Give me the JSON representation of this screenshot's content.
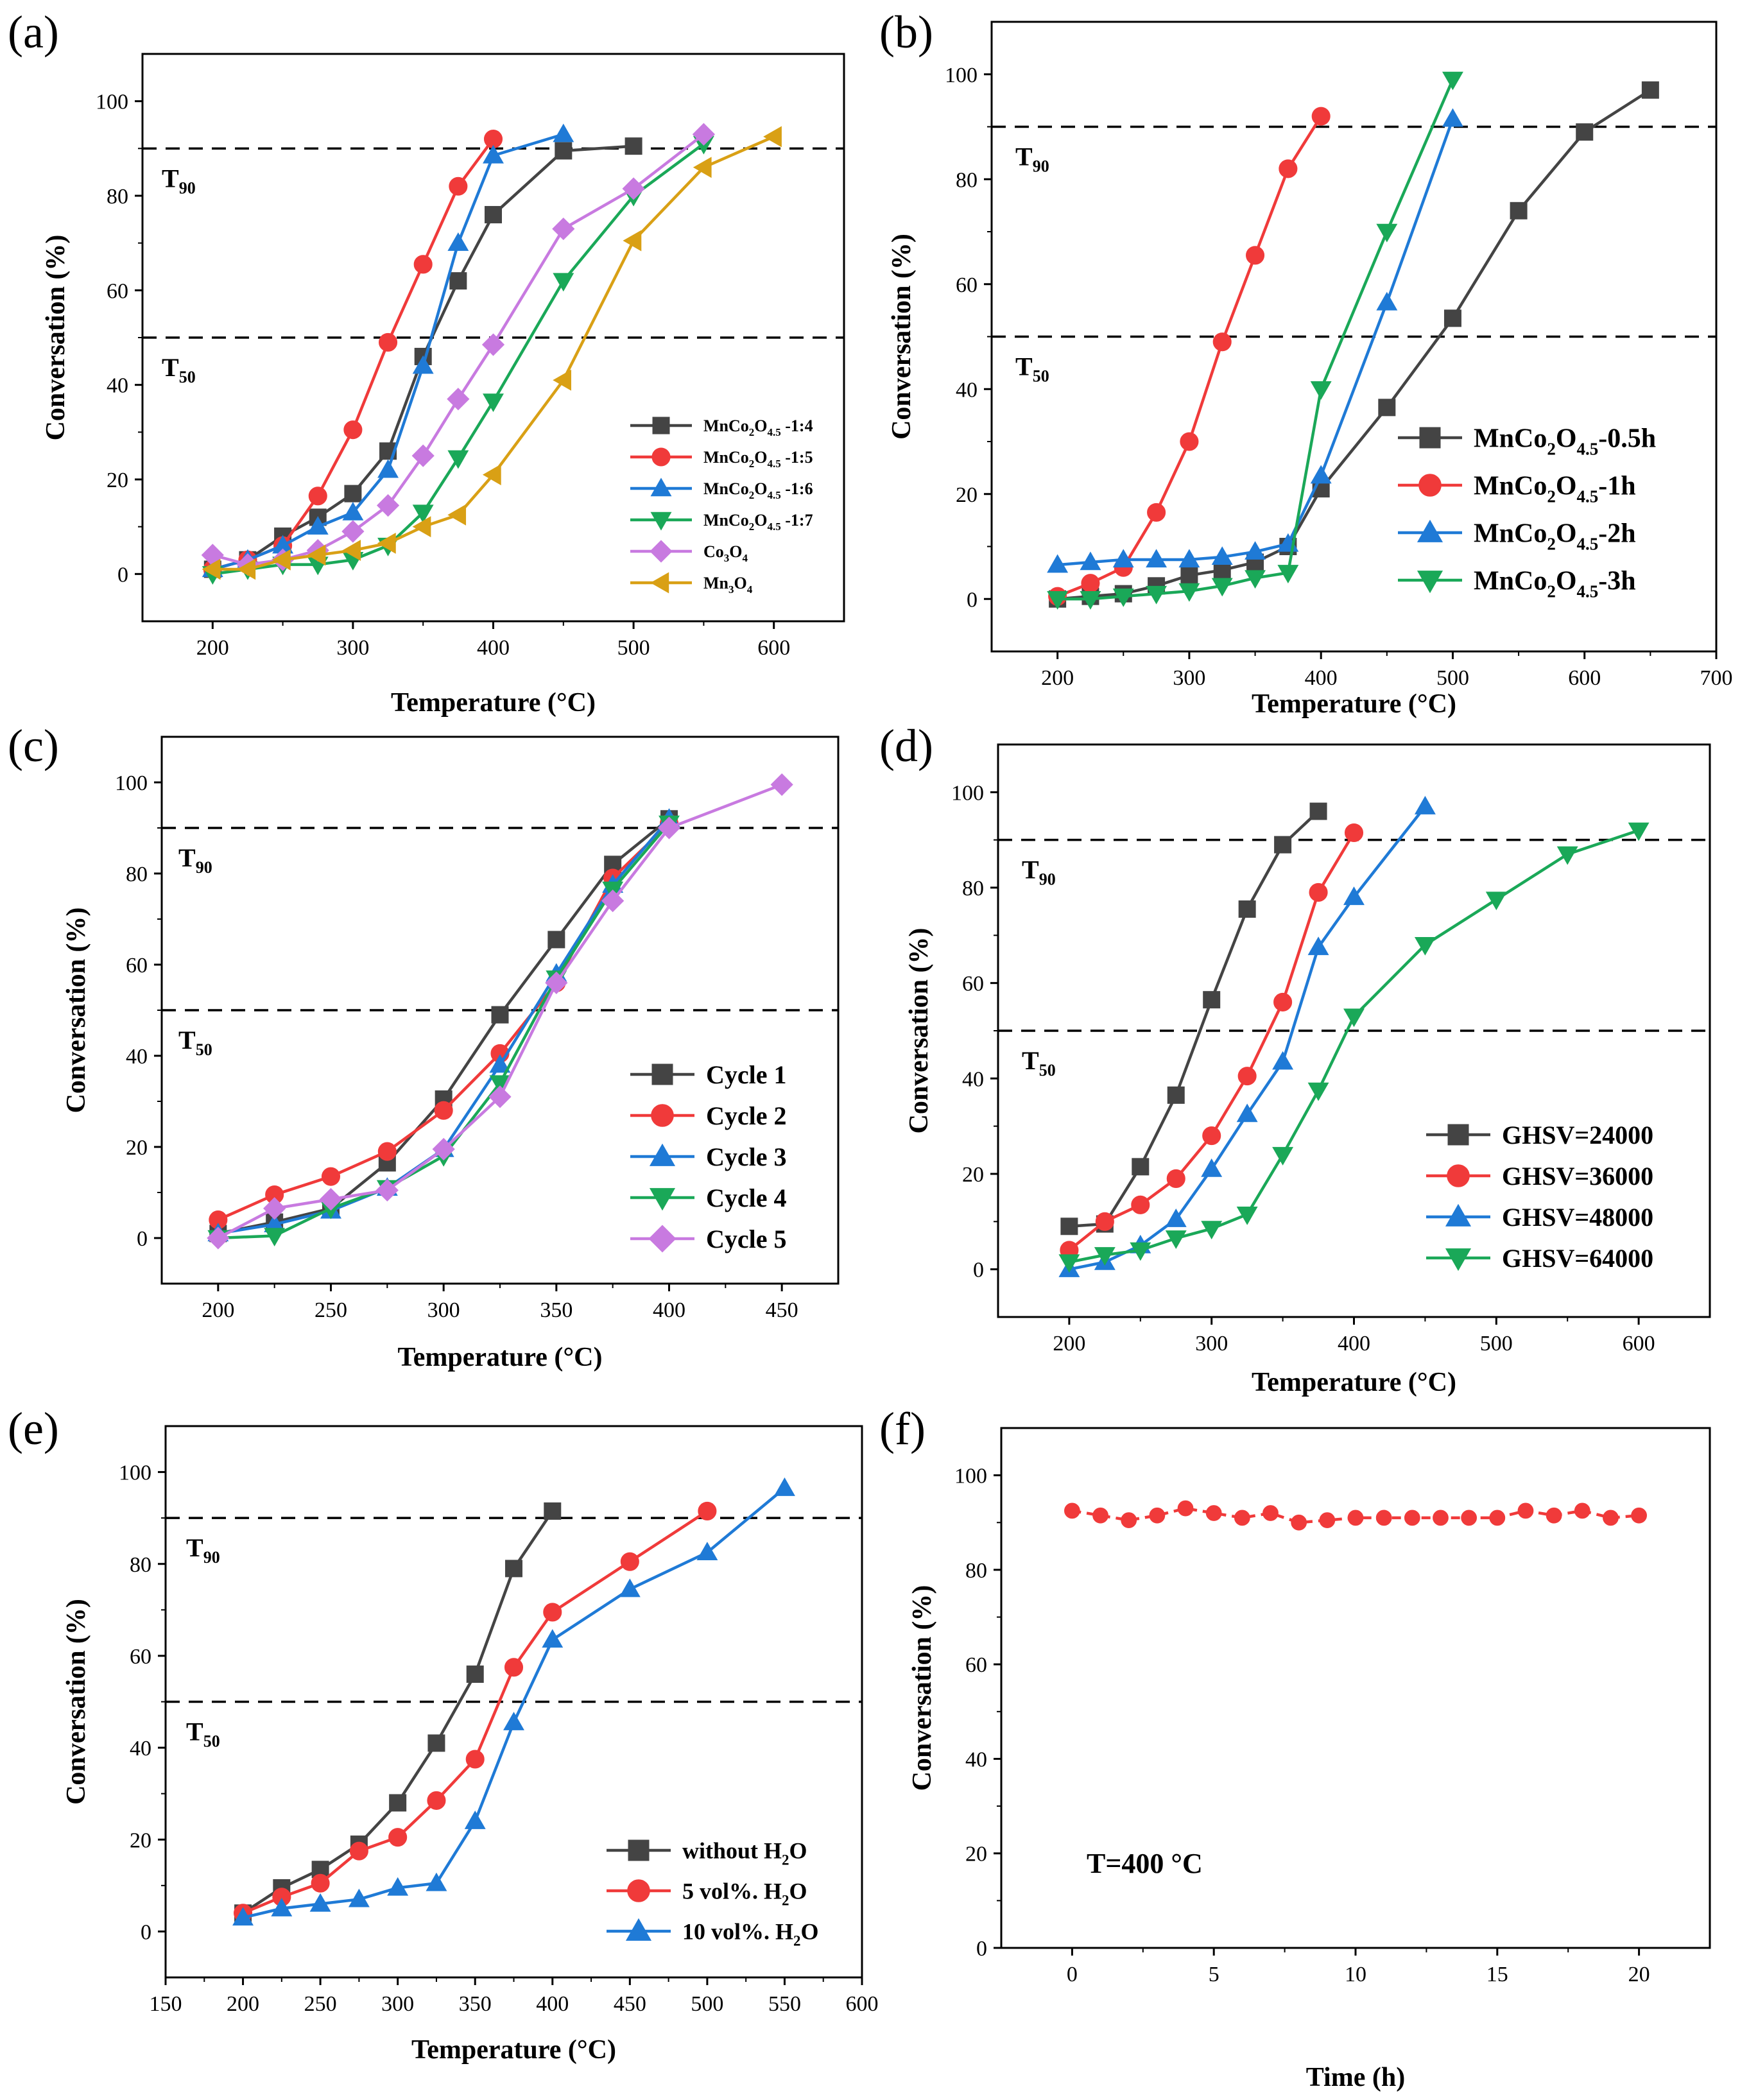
{
  "chart_data": [
    {
      "type": "line",
      "panel_label": "(a)",
      "xlabel": "Temperature (°C)",
      "ylabel": "Conversation (%)",
      "xlim": [
        150,
        650
      ],
      "ylim": [
        -10,
        110
      ],
      "xticks": [
        200,
        300,
        400,
        500,
        600
      ],
      "yticks": [
        0,
        20,
        40,
        60,
        80,
        100
      ],
      "reference_lines": [
        {
          "y": 90,
          "label": "T",
          "sub": "90"
        },
        {
          "y": 50,
          "label": "T",
          "sub": "50"
        }
      ],
      "legend_position": "bottom-right",
      "series": [
        {
          "name": "MnCo₂O₄.₅-1:4",
          "label_main": "MnCo",
          "label_sub1": "2",
          "label_mid": "O",
          "label_sub2": "4.5",
          "label_tail": " -1:4",
          "color": "#444444",
          "marker": "square",
          "x": [
            200,
            225,
            250,
            275,
            300,
            325,
            350,
            375,
            400,
            450,
            500
          ],
          "y": [
            1,
            3,
            8,
            12,
            17,
            26,
            46,
            62,
            76,
            89.5,
            90.5
          ]
        },
        {
          "name": "MnCo₂O₄.₅-1:5",
          "label_main": "MnCo",
          "label_sub1": "2",
          "label_mid": "O",
          "label_sub2": "4.5",
          "label_tail": " -1:5",
          "color": "#f03a3a",
          "marker": "circle",
          "x": [
            200,
            225,
            250,
            275,
            300,
            325,
            350,
            375,
            400
          ],
          "y": [
            1,
            3,
            6,
            16.5,
            30.5,
            49,
            65.5,
            82,
            92
          ]
        },
        {
          "name": "MnCo₂O₄.₅-1:6",
          "label_main": "MnCo",
          "label_sub1": "2",
          "label_mid": "O",
          "label_sub2": "4.5",
          "label_tail": " -1:6",
          "color": "#1f7ad6",
          "marker": "triangle-up",
          "x": [
            200,
            225,
            250,
            275,
            300,
            325,
            350,
            375,
            400,
            450
          ],
          "y": [
            1,
            3,
            6,
            10,
            13,
            22,
            44,
            70,
            88.5,
            93
          ]
        },
        {
          "name": "MnCo₂O₄.₅-1:7",
          "label_main": "MnCo",
          "label_sub1": "2",
          "label_mid": "O",
          "label_sub2": "4.5",
          "label_tail": " -1:7",
          "color": "#1aa858",
          "marker": "triangle-down",
          "x": [
            200,
            225,
            250,
            275,
            300,
            325,
            350,
            375,
            400,
            450,
            500,
            550
          ],
          "y": [
            0,
            1,
            2,
            2,
            3,
            6,
            13,
            24.5,
            36.5,
            62,
            80,
            91
          ]
        },
        {
          "name": "Co₃O₄",
          "label_main": "Co",
          "label_sub1": "3",
          "label_mid": "O",
          "label_sub2": "4",
          "label_tail": "",
          "color": "#c87ae0",
          "marker": "diamond",
          "x": [
            200,
            225,
            250,
            275,
            300,
            325,
            350,
            375,
            400,
            450,
            500,
            550
          ],
          "y": [
            4,
            2,
            3,
            5,
            9,
            14.5,
            25,
            37,
            48.5,
            73,
            81.5,
            93
          ]
        },
        {
          "name": "Mn₃O₄",
          "label_main": "Mn",
          "label_sub1": "3",
          "label_mid": "O",
          "label_sub2": "4",
          "label_tail": "",
          "color": "#d9a015",
          "marker": "triangle-left",
          "x": [
            200,
            225,
            250,
            275,
            300,
            325,
            350,
            375,
            400,
            450,
            500,
            550,
            600
          ],
          "y": [
            1,
            1,
            3,
            4,
            5,
            6.5,
            10,
            12.5,
            21,
            41,
            70.5,
            86,
            92.5
          ]
        }
      ]
    },
    {
      "type": "line",
      "panel_label": "(b)",
      "xlabel": "Temperature (°C)",
      "ylabel": "Conversation (%)",
      "xlim": [
        150,
        700
      ],
      "ylim": [
        -10,
        110
      ],
      "xticks": [
        200,
        300,
        400,
        500,
        600,
        700
      ],
      "yticks": [
        0,
        20,
        40,
        60,
        80,
        100
      ],
      "reference_lines": [
        {
          "y": 90,
          "label": "T",
          "sub": "90"
        },
        {
          "y": 50,
          "label": "T",
          "sub": "50"
        }
      ],
      "legend_position": "bottom-right",
      "series": [
        {
          "name": "MnCo₂O₄.₅-0.5h",
          "label_main": "MnCo",
          "label_sub1": "2",
          "label_mid": "O",
          "label_sub2": "4.5",
          "label_tail": "-0.5h",
          "color": "#444444",
          "marker": "square",
          "x": [
            200,
            225,
            250,
            275,
            300,
            325,
            350,
            375,
            400,
            450,
            500,
            550,
            600,
            650
          ],
          "y": [
            0,
            0.5,
            1,
            2.5,
            4.5,
            5.5,
            7,
            10,
            21,
            36.5,
            53.5,
            74,
            89,
            97
          ]
        },
        {
          "name": "MnCo₂O₄.₅-1h",
          "label_main": "MnCo",
          "label_sub1": "2",
          "label_mid": "O",
          "label_sub2": "4.5",
          "label_tail": "-1h",
          "color": "#f03a3a",
          "marker": "circle",
          "x": [
            200,
            225,
            250,
            275,
            300,
            325,
            350,
            375,
            400
          ],
          "y": [
            0.5,
            3,
            6,
            16.5,
            30,
            49,
            65.5,
            82,
            92
          ]
        },
        {
          "name": "MnCo₂O₄.₅-2h",
          "label_main": "MnCo",
          "label_sub1": "2",
          "label_mid": "O",
          "label_sub2": "4.5",
          "label_tail": "-2h",
          "color": "#1f7ad6",
          "marker": "triangle-up",
          "x": [
            200,
            225,
            250,
            275,
            300,
            325,
            350,
            375,
            400,
            450,
            500
          ],
          "y": [
            6.5,
            7,
            7.5,
            7.5,
            7.5,
            8,
            9,
            10.5,
            23.5,
            56.5,
            91.5
          ]
        },
        {
          "name": "MnCo₂O₄.₅-3h",
          "label_main": "MnCo",
          "label_sub1": "2",
          "label_mid": "O",
          "label_sub2": "4.5",
          "label_tail": "-3h",
          "color": "#1aa858",
          "marker": "triangle-down",
          "x": [
            200,
            225,
            250,
            275,
            300,
            325,
            350,
            375,
            400,
            450,
            500
          ],
          "y": [
            0,
            0,
            0.5,
            1,
            1.5,
            2.5,
            4,
            5,
            40,
            70,
            99
          ]
        }
      ]
    },
    {
      "type": "line",
      "panel_label": "(c)",
      "xlabel": "Temperature (°C)",
      "ylabel": "Conversation (%)",
      "xlim": [
        175,
        475
      ],
      "ylim": [
        -10,
        110
      ],
      "xticks": [
        200,
        250,
        300,
        350,
        400,
        450
      ],
      "yticks": [
        0,
        20,
        40,
        60,
        80,
        100
      ],
      "reference_lines": [
        {
          "y": 90,
          "label": "T",
          "sub": "90"
        },
        {
          "y": 50,
          "label": "T",
          "sub": "50"
        }
      ],
      "legend_position": "bottom-right",
      "series": [
        {
          "name": "Cycle 1",
          "label_main": "Cycle 1",
          "color": "#444444",
          "marker": "square",
          "x": [
            200,
            225,
            250,
            275,
            300,
            325,
            350,
            375,
            400
          ],
          "y": [
            1,
            3.5,
            6.5,
            16.5,
            30.5,
            49,
            65.5,
            82,
            92
          ]
        },
        {
          "name": "Cycle 2",
          "label_main": "Cycle 2",
          "color": "#f03a3a",
          "marker": "circle",
          "x": [
            200,
            225,
            250,
            275,
            300,
            325,
            350,
            375,
            400
          ],
          "y": [
            4,
            9.5,
            13.5,
            19,
            28,
            40.5,
            56,
            79,
            91
          ]
        },
        {
          "name": "Cycle 3",
          "label_main": "Cycle 3",
          "color": "#1f7ad6",
          "marker": "triangle-up",
          "x": [
            200,
            225,
            250,
            275,
            300,
            325,
            350,
            375,
            400
          ],
          "y": [
            1,
            3,
            6,
            11,
            19.5,
            38,
            58,
            77.5,
            92
          ]
        },
        {
          "name": "Cycle 4",
          "label_main": "Cycle 4",
          "color": "#1aa858",
          "marker": "triangle-down",
          "x": [
            200,
            225,
            250,
            275,
            300,
            325,
            350,
            375,
            400
          ],
          "y": [
            0,
            0.5,
            6.5,
            11,
            18,
            34,
            57,
            76.5,
            91
          ]
        },
        {
          "name": "Cycle 5",
          "label_main": "Cycle 5",
          "color": "#c87ae0",
          "marker": "diamond",
          "x": [
            200,
            225,
            250,
            275,
            300,
            325,
            350,
            375,
            400,
            450
          ],
          "y": [
            0,
            6.5,
            8.5,
            10.5,
            19.5,
            31,
            56,
            74,
            90,
            99.5
          ]
        }
      ]
    },
    {
      "type": "line",
      "panel_label": "(d)",
      "xlabel": "Temperature (°C)",
      "ylabel": "Conversation (%)",
      "xlim": [
        150,
        650
      ],
      "ylim": [
        -10,
        110
      ],
      "xticks": [
        200,
        300,
        400,
        500,
        600
      ],
      "yticks": [
        0,
        20,
        40,
        60,
        80,
        100
      ],
      "reference_lines": [
        {
          "y": 90,
          "label": "T",
          "sub": "90"
        },
        {
          "y": 50,
          "label": "T",
          "sub": "50"
        }
      ],
      "legend_position": "bottom-right",
      "series": [
        {
          "name": "GHSV=24000",
          "label_main": "GHSV=24000",
          "color": "#444444",
          "marker": "square",
          "x": [
            200,
            225,
            250,
            275,
            300,
            325,
            350,
            375
          ],
          "y": [
            9,
            9.5,
            21.5,
            36.5,
            56.5,
            75.5,
            89,
            96
          ]
        },
        {
          "name": "GHSV=36000",
          "label_main": "GHSV=36000",
          "color": "#f03a3a",
          "marker": "circle",
          "x": [
            200,
            225,
            250,
            275,
            300,
            325,
            350,
            375,
            400
          ],
          "y": [
            4,
            10,
            13.5,
            19,
            28,
            40.5,
            56,
            79,
            91.5
          ]
        },
        {
          "name": "GHSV=48000",
          "label_main": "GHSV=48000",
          "color": "#1f7ad6",
          "marker": "triangle-up",
          "x": [
            200,
            225,
            250,
            275,
            300,
            325,
            350,
            375,
            400,
            450
          ],
          "y": [
            0,
            1.5,
            5,
            10.5,
            21,
            32.5,
            43.5,
            67.5,
            78,
            97
          ]
        },
        {
          "name": "GHSV=64000",
          "label_main": "GHSV=64000",
          "color": "#1aa858",
          "marker": "triangle-down",
          "x": [
            200,
            225,
            250,
            275,
            300,
            325,
            350,
            375,
            400,
            450,
            500,
            550,
            600
          ],
          "y": [
            1.5,
            3,
            4,
            6.5,
            8.5,
            11.5,
            24,
            37.5,
            53,
            68,
            77.5,
            87,
            92
          ]
        }
      ]
    },
    {
      "type": "line",
      "panel_label": "(e)",
      "xlabel": "Temperature (°C)",
      "ylabel": "Conversation (%)",
      "xlim": [
        150,
        600
      ],
      "ylim": [
        -10,
        110
      ],
      "xticks": [
        150,
        200,
        250,
        300,
        350,
        400,
        450,
        500,
        550,
        600
      ],
      "yticks": [
        0,
        20,
        40,
        60,
        80,
        100
      ],
      "reference_lines": [
        {
          "y": 90,
          "label": "T",
          "sub": "90"
        },
        {
          "y": 50,
          "label": "T",
          "sub": "50"
        }
      ],
      "legend_position": "bottom-right",
      "series": [
        {
          "name": "without H₂O",
          "label_main": "without H",
          "label_sub1": "2",
          "label_mid": "O",
          "color": "#444444",
          "marker": "square",
          "x": [
            200,
            225,
            250,
            275,
            300,
            325,
            350,
            375,
            400
          ],
          "y": [
            4,
            9.5,
            13.5,
            19,
            28,
            41,
            56,
            79,
            91.5
          ]
        },
        {
          "name": "5 vol%. H₂O",
          "label_main": "5 vol%. H",
          "label_sub1": "2",
          "label_mid": "O",
          "color": "#f03a3a",
          "marker": "circle",
          "x": [
            200,
            225,
            250,
            275,
            300,
            325,
            350,
            375,
            400,
            450,
            500
          ],
          "y": [
            4,
            7.5,
            10.5,
            17.5,
            20.5,
            28.5,
            37.5,
            57.5,
            69.5,
            80.5,
            91.5
          ]
        },
        {
          "name": "10 vol%. H₂O",
          "label_main": "10 vol%. H",
          "label_sub1": "2",
          "label_mid": "O",
          "color": "#1f7ad6",
          "marker": "triangle-up",
          "x": [
            200,
            225,
            250,
            275,
            300,
            325,
            350,
            375,
            400,
            450,
            500,
            550
          ],
          "y": [
            3,
            5,
            6,
            7,
            9.5,
            10.5,
            24,
            45.5,
            63.5,
            74.5,
            82.5,
            96.5
          ]
        }
      ]
    },
    {
      "type": "line",
      "panel_label": "(f)",
      "xlabel": "Time (h)",
      "ylabel": "Conversation (%)",
      "xlim": [
        -2.5,
        22.5
      ],
      "ylim": [
        0,
        110
      ],
      "xticks": [
        0,
        5,
        10,
        15,
        20
      ],
      "yticks": [
        0,
        20,
        40,
        60,
        80,
        100
      ],
      "reference_lines": [],
      "annotation": "T=400 °C",
      "series": [
        {
          "name": "T=400 °C",
          "color": "#f03a3a",
          "marker": "circle",
          "dashed": true,
          "x": [
            0,
            1,
            2,
            3,
            4,
            5,
            6,
            7,
            8,
            9,
            10,
            11,
            12,
            13,
            14,
            15,
            16,
            17,
            18,
            19,
            20
          ],
          "y": [
            92.5,
            91.5,
            90.5,
            91.5,
            93,
            92,
            91,
            92,
            90,
            90.5,
            91,
            91,
            91,
            91,
            91,
            91,
            92.5,
            91.5,
            92.5,
            91,
            91.5
          ]
        }
      ]
    }
  ]
}
